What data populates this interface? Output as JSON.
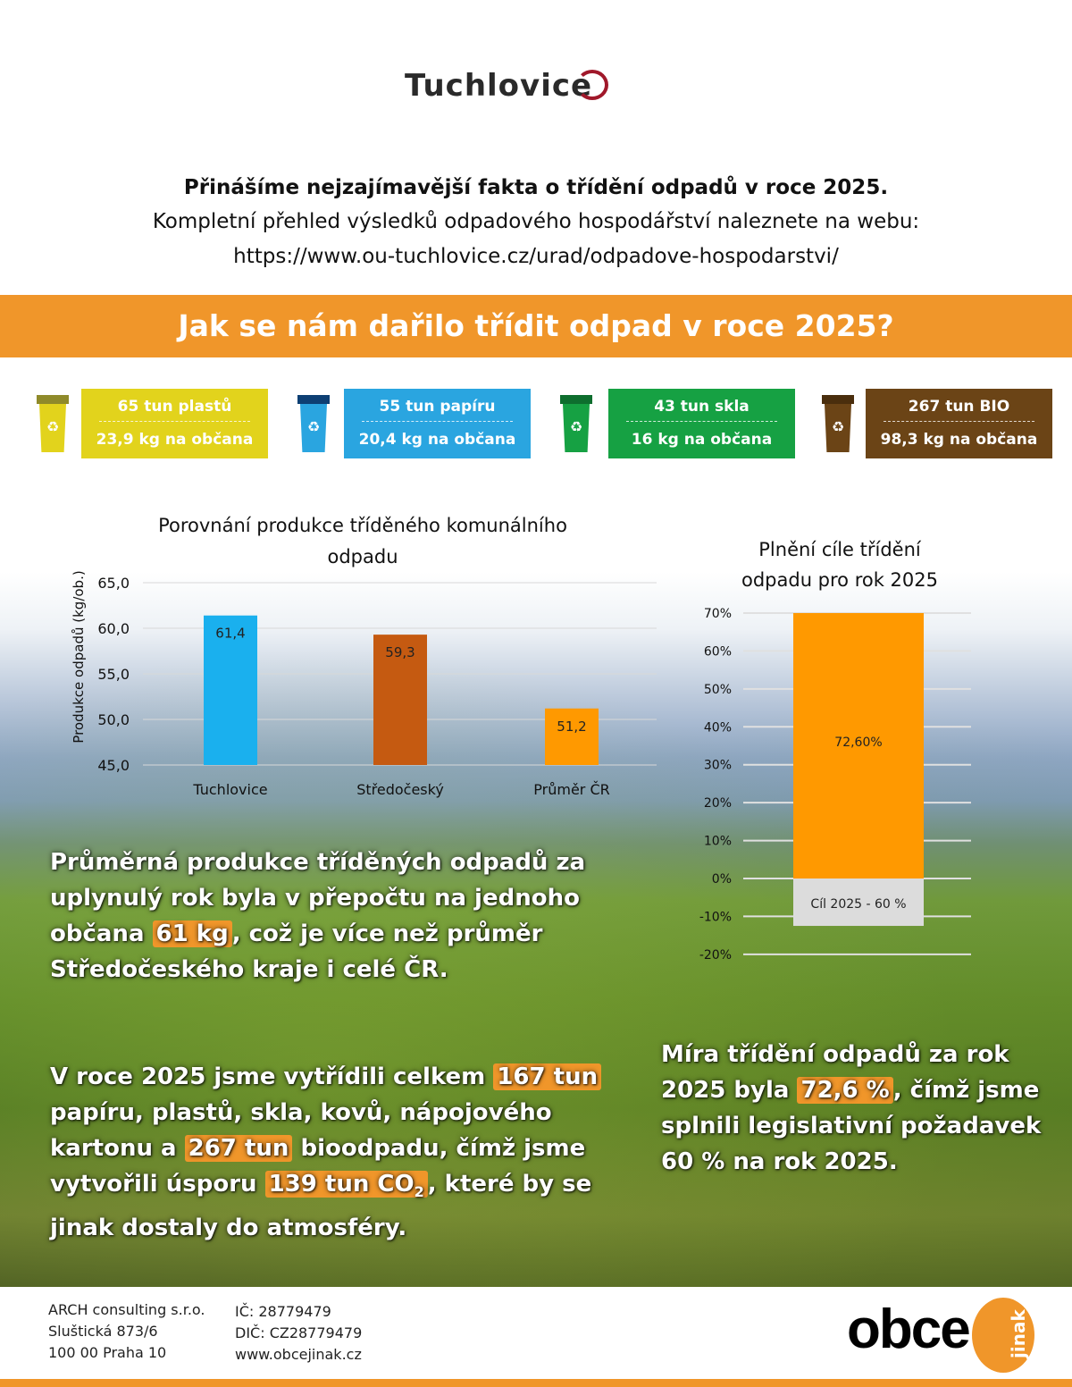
{
  "logo": {
    "text": "Tuchlovice"
  },
  "intro": {
    "headline": "Přinášíme nejzajímavější fakta o třídění odpadů v roce 2025.",
    "line2": "Kompletní přehled výsledků odpadového hospodářství naleznete na webu:",
    "url": "https://www.ou-tuchlovice.cz/urad/odpadove-hospodarstvi/"
  },
  "banner": {
    "title": "Jak se nám dařilo třídit odpad v roce 2025?"
  },
  "stats": [
    {
      "total": "65 tun plastů",
      "per_capita": "23,9 kg na občana",
      "color": "#e2d31c",
      "lid": "#8f8a2a",
      "icon": "recycle-bin-icon"
    },
    {
      "total": "55 tun papíru",
      "per_capita": "20,4 kg na občana",
      "color": "#2aa5e0",
      "lid": "#0d3f73",
      "icon": "recycle-bin-icon"
    },
    {
      "total": "43 tun skla",
      "per_capita": "16 kg na občana",
      "color": "#16a143",
      "lid": "#0e6e2e",
      "icon": "recycle-bin-icon"
    },
    {
      "total": "267 tun BIO",
      "per_capita": "98,3 kg na občana",
      "color": "#6b4416",
      "lid": "#4a2e0d",
      "icon": "recycle-bin-icon"
    }
  ],
  "chart_data": [
    {
      "type": "bar",
      "title_line1": "Porovnání produkce tříděného komunálního",
      "title_line2": "odpadu",
      "ylabel": "Produkce odpadů (kg/ob.)",
      "ylim": [
        45,
        65
      ],
      "yticks": [
        "45,0",
        "50,0",
        "55,0",
        "60,0",
        "65,0"
      ],
      "ytick_values": [
        45,
        50,
        55,
        60,
        65
      ],
      "grid": true,
      "categories": [
        "Tuchlovice",
        "Středočeský",
        "Průměr ČR"
      ],
      "values": [
        61.4,
        59.3,
        51.2
      ],
      "labels": [
        "61,4",
        "59,3",
        "51,2"
      ],
      "colors": [
        "#1ab0ee",
        "#c55a11",
        "#ff9900"
      ]
    },
    {
      "type": "bar",
      "title_line1": "Plnění cíle třídění",
      "title_line2": "odpadu pro rok 2025",
      "ylim": [
        -20,
        70
      ],
      "yticks": [
        "-20%",
        "-10%",
        "0%",
        "10%",
        "20%",
        "30%",
        "40%",
        "50%",
        "60%",
        "70%"
      ],
      "ytick_values": [
        -20,
        -10,
        0,
        10,
        20,
        30,
        40,
        50,
        60,
        70
      ],
      "grid": true,
      "value": 72.6,
      "label": "72,60%",
      "color": "#ff9900",
      "goal_label": "Cíl 2025 - 60 %",
      "goal_color": "#dcdcdc",
      "goal_segment": -12.5
    }
  ],
  "paragraphs": {
    "p1": {
      "a": "Průměrná produkce tříděných odpadů za uplynulý rok byla v přepočtu na jednoho občana ",
      "hl": "61 kg",
      "b": ", což je více než průměr Středočeského kraje i celé ČR."
    },
    "p2": {
      "a": "V roce 2025 jsme vytřídili celkem ",
      "hl1": "167 tun",
      "b": " papíru, plastů, skla, kovů, nápojového kartonu a ",
      "hl2": "267 tun",
      "c": " bioodpadu, čímž jsme vytvořili úsporu ",
      "hl3": "139 tun CO",
      "sub": "2",
      "d": ", které by se jinak dostaly do atmosféry."
    },
    "p3": {
      "a": "Míra třídění odpadů za rok 2025 byla ",
      "hl": "72,6 %",
      "b": ", čímž jsme splnili legislativní požadavek 60 % na rok 2025."
    }
  },
  "footer": {
    "company": "ARCH consulting s.r.o.",
    "street": "Sluštická 873/6",
    "city": "100 00 Praha 10",
    "ic": "IČ: 28779479",
    "dic": "DIČ: CZ28779479",
    "web": "www.obcejinak.cz",
    "logo_main": "obce",
    "logo_side": "jinak"
  },
  "colors": {
    "accent": "#f0962a"
  }
}
